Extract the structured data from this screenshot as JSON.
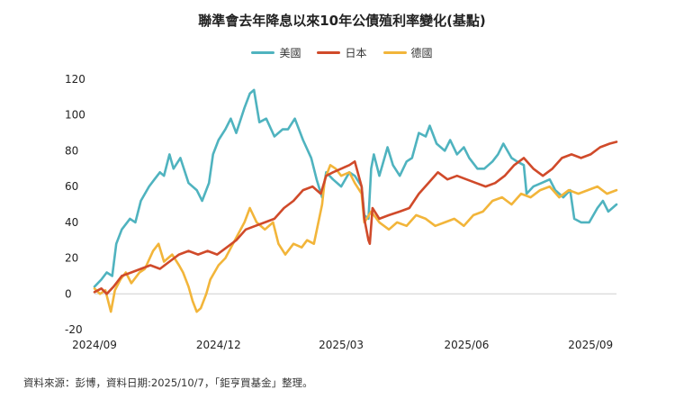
{
  "chart_data": {
    "type": "line",
    "title": "聯準會去年降息以來10年公債殖利率變化(基點)",
    "xlabel": "",
    "ylabel": "",
    "ylim": [
      -20,
      120
    ],
    "yticks": [
      -20,
      0,
      20,
      40,
      60,
      80,
      100,
      120
    ],
    "xlim": [
      "2024-09-18",
      "2025-10-06"
    ],
    "xticks": [
      {
        "date": "2024-09-18",
        "label": "2024/09"
      },
      {
        "date": "2024-12-18",
        "label": "2024/12"
      },
      {
        "date": "2025-03-18",
        "label": "2025/03"
      },
      {
        "date": "2025-06-18",
        "label": "2025/06"
      },
      {
        "date": "2025-09-17",
        "label": "2025/09"
      }
    ],
    "grid": false,
    "legend_position": "top-center",
    "series": [
      {
        "name": "美國",
        "color": "#4fb3bf",
        "points": [
          [
            "2024-09-18",
            4
          ],
          [
            "2024-09-23",
            8
          ],
          [
            "2024-09-27",
            12
          ],
          [
            "2024-10-01",
            10
          ],
          [
            "2024-10-04",
            28
          ],
          [
            "2024-10-08",
            36
          ],
          [
            "2024-10-14",
            42
          ],
          [
            "2024-10-18",
            40
          ],
          [
            "2024-10-22",
            52
          ],
          [
            "2024-10-28",
            60
          ],
          [
            "2024-11-01",
            64
          ],
          [
            "2024-11-05",
            68
          ],
          [
            "2024-11-08",
            66
          ],
          [
            "2024-11-12",
            78
          ],
          [
            "2024-11-15",
            70
          ],
          [
            "2024-11-20",
            76
          ],
          [
            "2024-11-26",
            62
          ],
          [
            "2024-12-02",
            58
          ],
          [
            "2024-12-06",
            52
          ],
          [
            "2024-12-11",
            62
          ],
          [
            "2024-12-14",
            78
          ],
          [
            "2024-12-18",
            86
          ],
          [
            "2024-12-23",
            92
          ],
          [
            "2024-12-27",
            98
          ],
          [
            "2024-12-31",
            90
          ],
          [
            "2025-01-06",
            104
          ],
          [
            "2025-01-10",
            112
          ],
          [
            "2025-01-13",
            114
          ],
          [
            "2025-01-17",
            96
          ],
          [
            "2025-01-22",
            98
          ],
          [
            "2025-01-28",
            88
          ],
          [
            "2025-02-03",
            92
          ],
          [
            "2025-02-07",
            92
          ],
          [
            "2025-02-12",
            98
          ],
          [
            "2025-02-18",
            86
          ],
          [
            "2025-02-24",
            76
          ],
          [
            "2025-02-28",
            64
          ],
          [
            "2025-03-04",
            54
          ],
          [
            "2025-03-07",
            68
          ],
          [
            "2025-03-12",
            64
          ],
          [
            "2025-03-18",
            60
          ],
          [
            "2025-03-24",
            68
          ],
          [
            "2025-03-28",
            66
          ],
          [
            "2025-04-02",
            60
          ],
          [
            "2025-04-04",
            44
          ],
          [
            "2025-04-07",
            42
          ],
          [
            "2025-04-09",
            70
          ],
          [
            "2025-04-11",
            78
          ],
          [
            "2025-04-15",
            66
          ],
          [
            "2025-04-21",
            82
          ],
          [
            "2025-04-25",
            72
          ],
          [
            "2025-04-30",
            66
          ],
          [
            "2025-05-05",
            74
          ],
          [
            "2025-05-09",
            76
          ],
          [
            "2025-05-14",
            90
          ],
          [
            "2025-05-19",
            88
          ],
          [
            "2025-05-22",
            94
          ],
          [
            "2025-05-27",
            84
          ],
          [
            "2025-06-02",
            80
          ],
          [
            "2025-06-06",
            86
          ],
          [
            "2025-06-11",
            78
          ],
          [
            "2025-06-16",
            82
          ],
          [
            "2025-06-20",
            76
          ],
          [
            "2025-06-26",
            70
          ],
          [
            "2025-07-01",
            70
          ],
          [
            "2025-07-07",
            74
          ],
          [
            "2025-07-11",
            78
          ],
          [
            "2025-07-15",
            84
          ],
          [
            "2025-07-21",
            76
          ],
          [
            "2025-07-25",
            74
          ],
          [
            "2025-07-30",
            72
          ],
          [
            "2025-08-01",
            56
          ],
          [
            "2025-08-06",
            60
          ],
          [
            "2025-08-12",
            62
          ],
          [
            "2025-08-18",
            64
          ],
          [
            "2025-08-22",
            58
          ],
          [
            "2025-08-28",
            54
          ],
          [
            "2025-09-02",
            58
          ],
          [
            "2025-09-05",
            42
          ],
          [
            "2025-09-10",
            40
          ],
          [
            "2025-09-16",
            40
          ],
          [
            "2025-09-22",
            48
          ],
          [
            "2025-09-26",
            52
          ],
          [
            "2025-09-30",
            46
          ],
          [
            "2025-10-06",
            50
          ]
        ]
      },
      {
        "name": "日本",
        "color": "#d04a2a",
        "points": [
          [
            "2024-09-18",
            1
          ],
          [
            "2024-09-23",
            3
          ],
          [
            "2024-09-27",
            0
          ],
          [
            "2024-10-02",
            4
          ],
          [
            "2024-10-08",
            10
          ],
          [
            "2024-10-15",
            12
          ],
          [
            "2024-10-22",
            14
          ],
          [
            "2024-10-29",
            16
          ],
          [
            "2024-11-05",
            14
          ],
          [
            "2024-11-12",
            18
          ],
          [
            "2024-11-19",
            22
          ],
          [
            "2024-11-26",
            24
          ],
          [
            "2024-12-03",
            22
          ],
          [
            "2024-12-10",
            24
          ],
          [
            "2024-12-17",
            22
          ],
          [
            "2024-12-24",
            26
          ],
          [
            "2024-12-31",
            30
          ],
          [
            "2025-01-07",
            36
          ],
          [
            "2025-01-14",
            38
          ],
          [
            "2025-01-21",
            40
          ],
          [
            "2025-01-28",
            42
          ],
          [
            "2025-02-04",
            48
          ],
          [
            "2025-02-11",
            52
          ],
          [
            "2025-02-18",
            58
          ],
          [
            "2025-02-25",
            60
          ],
          [
            "2025-03-03",
            56
          ],
          [
            "2025-03-07",
            66
          ],
          [
            "2025-03-12",
            68
          ],
          [
            "2025-03-18",
            70
          ],
          [
            "2025-03-24",
            72
          ],
          [
            "2025-03-28",
            74
          ],
          [
            "2025-04-02",
            60
          ],
          [
            "2025-04-04",
            42
          ],
          [
            "2025-04-07",
            30
          ],
          [
            "2025-04-08",
            28
          ],
          [
            "2025-04-10",
            48
          ],
          [
            "2025-04-15",
            42
          ],
          [
            "2025-04-22",
            44
          ],
          [
            "2025-04-30",
            46
          ],
          [
            "2025-05-07",
            48
          ],
          [
            "2025-05-14",
            56
          ],
          [
            "2025-05-21",
            62
          ],
          [
            "2025-05-28",
            68
          ],
          [
            "2025-06-04",
            64
          ],
          [
            "2025-06-11",
            66
          ],
          [
            "2025-06-18",
            64
          ],
          [
            "2025-06-25",
            62
          ],
          [
            "2025-07-02",
            60
          ],
          [
            "2025-07-09",
            62
          ],
          [
            "2025-07-16",
            66
          ],
          [
            "2025-07-23",
            72
          ],
          [
            "2025-07-30",
            76
          ],
          [
            "2025-08-06",
            70
          ],
          [
            "2025-08-13",
            66
          ],
          [
            "2025-08-20",
            70
          ],
          [
            "2025-08-27",
            76
          ],
          [
            "2025-09-03",
            78
          ],
          [
            "2025-09-10",
            76
          ],
          [
            "2025-09-17",
            78
          ],
          [
            "2025-09-24",
            82
          ],
          [
            "2025-10-01",
            84
          ],
          [
            "2025-10-06",
            85
          ]
        ]
      },
      {
        "name": "德國",
        "color": "#f2b53a",
        "points": [
          [
            "2024-09-18",
            3
          ],
          [
            "2024-09-22",
            0
          ],
          [
            "2024-09-26",
            2
          ],
          [
            "2024-09-30",
            -10
          ],
          [
            "2024-10-03",
            2
          ],
          [
            "2024-10-07",
            8
          ],
          [
            "2024-10-11",
            12
          ],
          [
            "2024-10-15",
            6
          ],
          [
            "2024-10-21",
            12
          ],
          [
            "2024-10-25",
            14
          ],
          [
            "2024-10-31",
            24
          ],
          [
            "2024-11-04",
            28
          ],
          [
            "2024-11-08",
            18
          ],
          [
            "2024-11-14",
            22
          ],
          [
            "2024-11-19",
            16
          ],
          [
            "2024-11-22",
            12
          ],
          [
            "2024-11-26",
            4
          ],
          [
            "2024-11-29",
            -4
          ],
          [
            "2024-12-02",
            -10
          ],
          [
            "2024-12-05",
            -8
          ],
          [
            "2024-12-09",
            0
          ],
          [
            "2024-12-12",
            8
          ],
          [
            "2024-12-18",
            16
          ],
          [
            "2024-12-23",
            20
          ],
          [
            "2024-12-30",
            30
          ],
          [
            "2025-01-06",
            40
          ],
          [
            "2025-01-10",
            48
          ],
          [
            "2025-01-15",
            40
          ],
          [
            "2025-01-21",
            36
          ],
          [
            "2025-01-27",
            40
          ],
          [
            "2025-01-31",
            28
          ],
          [
            "2025-02-05",
            22
          ],
          [
            "2025-02-11",
            28
          ],
          [
            "2025-02-17",
            26
          ],
          [
            "2025-02-21",
            30
          ],
          [
            "2025-02-26",
            28
          ],
          [
            "2025-03-04",
            50
          ],
          [
            "2025-03-06",
            64
          ],
          [
            "2025-03-10",
            72
          ],
          [
            "2025-03-14",
            70
          ],
          [
            "2025-03-18",
            66
          ],
          [
            "2025-03-24",
            68
          ],
          [
            "2025-03-28",
            62
          ],
          [
            "2025-04-02",
            56
          ],
          [
            "2025-04-04",
            40
          ],
          [
            "2025-04-09",
            46
          ],
          [
            "2025-04-15",
            40
          ],
          [
            "2025-04-22",
            36
          ],
          [
            "2025-04-28",
            40
          ],
          [
            "2025-05-05",
            38
          ],
          [
            "2025-05-12",
            44
          ],
          [
            "2025-05-19",
            42
          ],
          [
            "2025-05-26",
            38
          ],
          [
            "2025-06-02",
            40
          ],
          [
            "2025-06-09",
            42
          ],
          [
            "2025-06-16",
            38
          ],
          [
            "2025-06-23",
            44
          ],
          [
            "2025-06-30",
            46
          ],
          [
            "2025-07-07",
            52
          ],
          [
            "2025-07-14",
            54
          ],
          [
            "2025-07-21",
            50
          ],
          [
            "2025-07-28",
            56
          ],
          [
            "2025-08-04",
            54
          ],
          [
            "2025-08-11",
            58
          ],
          [
            "2025-08-18",
            60
          ],
          [
            "2025-08-25",
            54
          ],
          [
            "2025-09-01",
            58
          ],
          [
            "2025-09-08",
            56
          ],
          [
            "2025-09-15",
            58
          ],
          [
            "2025-09-22",
            60
          ],
          [
            "2025-09-29",
            56
          ],
          [
            "2025-10-06",
            58
          ]
        ]
      }
    ]
  },
  "footer": {
    "source": "資料來源：彭博，資料日期:2025/10/7，「鉅亨買基金」整理。"
  }
}
